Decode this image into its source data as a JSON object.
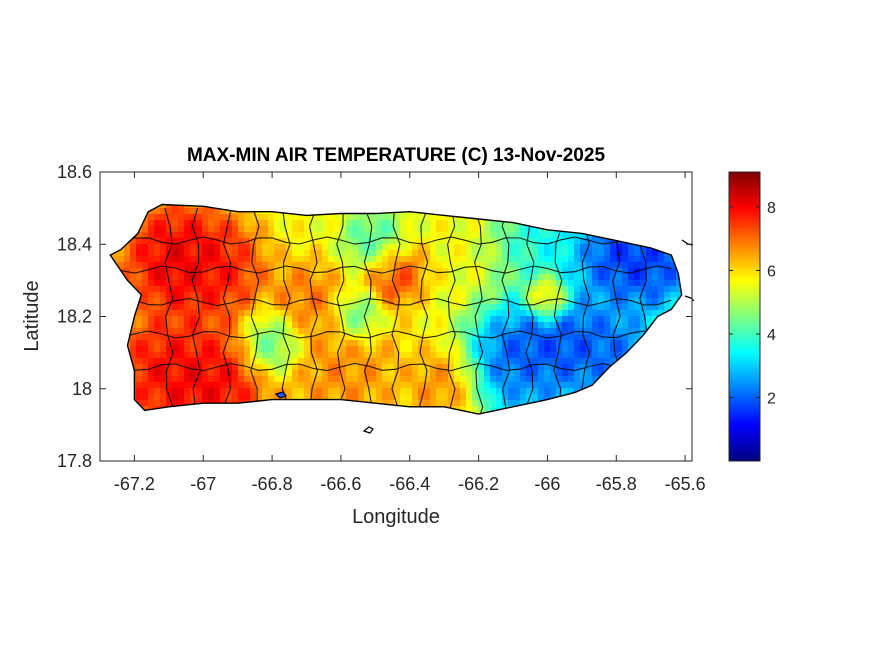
{
  "chart_data": {
    "type": "heatmap",
    "title": "MAX-MIN AIR TEMPERATURE (C) 13-Nov-2025",
    "xlabel": "Longitude",
    "ylabel": "Latitude",
    "xlim": [
      -67.3,
      -65.58
    ],
    "ylim": [
      17.8,
      18.6
    ],
    "xticks": [
      -67.2,
      -67,
      -66.8,
      -66.6,
      -66.4,
      -66.2,
      -66,
      -65.8,
      -65.6
    ],
    "xtick_labels": [
      "-67.2",
      "-67",
      "-66.8",
      "-66.6",
      "-66.4",
      "-66.2",
      "-66",
      "-65.8",
      "-65.6"
    ],
    "yticks": [
      17.8,
      18,
      18.2,
      18.4,
      18.6
    ],
    "ytick_labels": [
      "17.8",
      "18",
      "18.2",
      "18.4",
      "18.6"
    ],
    "colorbar": {
      "colormap": "jet",
      "range": [
        0,
        9.1
      ],
      "ticks": [
        2,
        4,
        6,
        8
      ],
      "tick_labels": [
        "2",
        "4",
        "6",
        "8"
      ]
    },
    "grid": false,
    "island_outline": [
      [
        -67.27,
        18.37
      ],
      [
        -67.24,
        18.385
      ],
      [
        -67.19,
        18.43
      ],
      [
        -67.16,
        18.49
      ],
      [
        -67.12,
        18.51
      ],
      [
        -67.0,
        18.505
      ],
      [
        -66.9,
        18.49
      ],
      [
        -66.8,
        18.49
      ],
      [
        -66.7,
        18.48
      ],
      [
        -66.6,
        18.485
      ],
      [
        -66.5,
        18.485
      ],
      [
        -66.4,
        18.49
      ],
      [
        -66.3,
        18.48
      ],
      [
        -66.2,
        18.47
      ],
      [
        -66.1,
        18.46
      ],
      [
        -66.0,
        18.44
      ],
      [
        -65.9,
        18.43
      ],
      [
        -65.8,
        18.41
      ],
      [
        -65.7,
        18.39
      ],
      [
        -65.64,
        18.37
      ],
      [
        -65.62,
        18.32
      ],
      [
        -65.61,
        18.26
      ],
      [
        -65.64,
        18.22
      ],
      [
        -65.68,
        18.2
      ],
      [
        -65.72,
        18.15
      ],
      [
        -65.77,
        18.1
      ],
      [
        -65.82,
        18.06
      ],
      [
        -65.87,
        18.01
      ],
      [
        -65.92,
        17.99
      ],
      [
        -66.0,
        17.97
      ],
      [
        -66.1,
        17.95
      ],
      [
        -66.2,
        17.93
      ],
      [
        -66.3,
        17.95
      ],
      [
        -66.4,
        17.95
      ],
      [
        -66.5,
        17.96
      ],
      [
        -66.6,
        17.97
      ],
      [
        -66.7,
        17.97
      ],
      [
        -66.8,
        17.97
      ],
      [
        -66.9,
        17.96
      ],
      [
        -67.0,
        17.96
      ],
      [
        -67.1,
        17.95
      ],
      [
        -67.17,
        17.94
      ],
      [
        -67.2,
        17.97
      ],
      [
        -67.2,
        18.05
      ],
      [
        -67.22,
        18.12
      ],
      [
        -67.2,
        18.2
      ],
      [
        -67.18,
        18.26
      ],
      [
        -67.22,
        18.3
      ]
    ],
    "field_hotspots": [
      {
        "lon": -67.08,
        "lat": 18.36,
        "value": 8.8,
        "radius": 0.09
      },
      {
        "lon": -66.96,
        "lat": 18.33,
        "value": 8.2,
        "radius": 0.08
      },
      {
        "lon": -67.12,
        "lat": 18.05,
        "value": 8.4,
        "radius": 0.09
      },
      {
        "lon": -66.97,
        "lat": 18.01,
        "value": 8.6,
        "radius": 0.09
      },
      {
        "lon": -66.45,
        "lat": 18.32,
        "value": 8.0,
        "radius": 0.05
      },
      {
        "lon": -66.0,
        "lat": 18.25,
        "value": 8.2,
        "radius": 0.035
      },
      {
        "lon": -66.7,
        "lat": 18.25,
        "value": 7.2,
        "radius": 0.06
      },
      {
        "lon": -66.6,
        "lat": 18.05,
        "value": 7.0,
        "radius": 0.1
      },
      {
        "lon": -66.3,
        "lat": 18.01,
        "value": 7.0,
        "radius": 0.06
      },
      {
        "lon": -66.5,
        "lat": 18.4,
        "value": 3.5,
        "radius": 0.05
      },
      {
        "lon": -66.55,
        "lat": 18.2,
        "value": 3.5,
        "radius": 0.04
      },
      {
        "lon": -66.8,
        "lat": 18.12,
        "value": 3.5,
        "radius": 0.05
      },
      {
        "lon": -66.0,
        "lat": 18.42,
        "value": 3.0,
        "radius": 0.08
      },
      {
        "lon": -65.7,
        "lat": 18.35,
        "value": 0.6,
        "radius": 0.09
      },
      {
        "lon": -65.82,
        "lat": 18.38,
        "value": 1.0,
        "radius": 0.07
      },
      {
        "lon": -65.95,
        "lat": 18.12,
        "value": 0.8,
        "radius": 0.1
      },
      {
        "lon": -66.1,
        "lat": 18.08,
        "value": 1.2,
        "radius": 0.08
      },
      {
        "lon": -65.8,
        "lat": 18.1,
        "value": 1.5,
        "radius": 0.07
      },
      {
        "lon": -66.05,
        "lat": 17.98,
        "value": 2.5,
        "radius": 0.06
      }
    ]
  }
}
